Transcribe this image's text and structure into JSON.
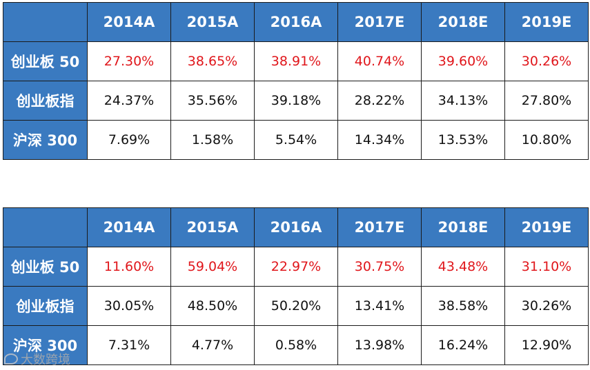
{
  "colors": {
    "header_bg": "#3a7ac0",
    "header_text": "#ffffff",
    "highlight_text": "#e0161b",
    "normal_text": "#111111"
  },
  "tables": [
    {
      "headers": [
        "2014A",
        "2015A",
        "2016A",
        "2017E",
        "2018E",
        "2019E"
      ],
      "rows": [
        {
          "label": "创业板 50",
          "values": [
            "27.30%",
            "38.65%",
            "38.91%",
            "40.74%",
            "39.60%",
            "30.26%"
          ]
        },
        {
          "label": "创业板指",
          "values": [
            "24.37%",
            "35.56%",
            "39.18%",
            "28.22%",
            "34.13%",
            "27.80%"
          ]
        },
        {
          "label": "沪深 300",
          "values": [
            "7.69%",
            "1.58%",
            "5.54%",
            "14.34%",
            "13.53%",
            "10.80%"
          ]
        }
      ]
    },
    {
      "headers": [
        "2014A",
        "2015A",
        "2016A",
        "2017E",
        "2018E",
        "2019E"
      ],
      "rows": [
        {
          "label": "创业板 50",
          "values": [
            "11.60%",
            "59.04%",
            "22.97%",
            "30.75%",
            "43.48%",
            "31.10%"
          ]
        },
        {
          "label": "创业板指",
          "values": [
            "30.05%",
            "48.50%",
            "50.20%",
            "13.41%",
            "38.58%",
            "30.26%"
          ]
        },
        {
          "label": "沪深 300",
          "values": [
            "7.31%",
            "4.77%",
            "0.58%",
            "13.98%",
            "16.24%",
            "12.90%"
          ]
        }
      ]
    }
  ],
  "watermark": {
    "text": "大数跨境",
    "icon": "logo-icon"
  }
}
